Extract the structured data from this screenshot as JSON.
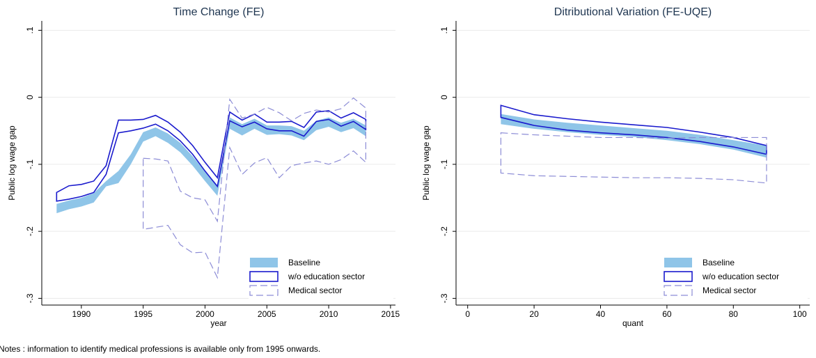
{
  "chart_data": [
    {
      "type": "band",
      "title": "Time Change (FE)",
      "xlabel": "year",
      "ylabel": "Public log wage gap",
      "x": [
        1988,
        1989,
        1990,
        1991,
        1992,
        1993,
        1994,
        1995,
        1996,
        1997,
        1998,
        1999,
        2000,
        2001,
        2002,
        2003,
        2004,
        2005,
        2006,
        2007,
        2008,
        2009,
        2010,
        2011,
        2012,
        2013
      ],
      "xlim": [
        1986.8,
        2015.4
      ],
      "xticks": [
        1990,
        1995,
        2000,
        2005,
        2010,
        2015
      ],
      "ylim": [
        -0.31,
        0.114
      ],
      "yticks": [
        {
          "value": 0.1,
          "label": ".1"
        },
        0,
        {
          "value": -0.1,
          "label": "-.1"
        },
        {
          "value": -0.2,
          "label": "-.2"
        },
        {
          "value": -0.3,
          "label": "-.3"
        }
      ],
      "grid": true,
      "legend": "lower right",
      "series": [
        {
          "name": "Baseline",
          "color": "#8fc5e8",
          "style": "filled",
          "upper": [
            -0.159,
            -0.154,
            -0.15,
            -0.143,
            -0.125,
            -0.11,
            -0.085,
            -0.052,
            -0.045,
            -0.054,
            -0.068,
            -0.088,
            -0.11,
            -0.131,
            -0.03,
            -0.04,
            -0.032,
            -0.042,
            -0.042,
            -0.043,
            -0.05,
            -0.035,
            -0.03,
            -0.038,
            -0.032,
            -0.042
          ],
          "lower": [
            -0.173,
            -0.167,
            -0.163,
            -0.157,
            -0.133,
            -0.128,
            -0.1,
            -0.066,
            -0.058,
            -0.068,
            -0.082,
            -0.102,
            -0.125,
            -0.147,
            -0.047,
            -0.057,
            -0.047,
            -0.056,
            -0.055,
            -0.057,
            -0.064,
            -0.049,
            -0.044,
            -0.052,
            -0.046,
            -0.058
          ]
        },
        {
          "name": "w/o education sector",
          "color": "#1a1acd",
          "style": "outline",
          "upper": [
            -0.142,
            -0.132,
            -0.13,
            -0.125,
            -0.102,
            -0.034,
            -0.034,
            -0.033,
            -0.027,
            -0.037,
            -0.052,
            -0.072,
            -0.097,
            -0.12,
            -0.022,
            -0.034,
            -0.025,
            -0.037,
            -0.037,
            -0.036,
            -0.045,
            -0.022,
            -0.02,
            -0.031,
            -0.023,
            -0.033
          ],
          "lower": [
            -0.155,
            -0.152,
            -0.148,
            -0.142,
            -0.115,
            -0.053,
            -0.05,
            -0.046,
            -0.04,
            -0.05,
            -0.065,
            -0.085,
            -0.11,
            -0.133,
            -0.035,
            -0.044,
            -0.037,
            -0.047,
            -0.05,
            -0.05,
            -0.058,
            -0.036,
            -0.033,
            -0.043,
            -0.036,
            -0.048
          ]
        },
        {
          "name": "Medical sector",
          "color": "#8c8cd6",
          "style": "dashed",
          "upper": [
            null,
            null,
            null,
            null,
            null,
            null,
            null,
            -0.091,
            -0.092,
            -0.095,
            -0.14,
            -0.15,
            -0.153,
            -0.185,
            -0.003,
            -0.031,
            -0.025,
            -0.015,
            -0.023,
            -0.035,
            -0.024,
            -0.019,
            -0.022,
            -0.017,
            -0.001,
            -0.016
          ],
          "lower": [
            null,
            null,
            null,
            null,
            null,
            null,
            null,
            -0.197,
            -0.194,
            -0.191,
            -0.22,
            -0.232,
            -0.231,
            -0.269,
            -0.075,
            -0.115,
            -0.098,
            -0.09,
            -0.12,
            -0.102,
            -0.098,
            -0.095,
            -0.1,
            -0.093,
            -0.08,
            -0.097
          ]
        }
      ]
    },
    {
      "type": "band",
      "title": "Ditributional Variation (FE-UQE)",
      "xlabel": "quant",
      "ylabel": "Public log wage gap",
      "x": [
        10,
        20,
        30,
        40,
        50,
        60,
        70,
        80,
        90
      ],
      "xlim": [
        -3.5,
        103
      ],
      "xticks": [
        0,
        20,
        40,
        60,
        80,
        100
      ],
      "ylim": [
        -0.31,
        0.114
      ],
      "yticks": [
        {
          "value": 0.1,
          "label": ".1"
        },
        0,
        {
          "value": -0.1,
          "label": "-.1"
        },
        {
          "value": -0.2,
          "label": "-.2"
        },
        {
          "value": -0.3,
          "label": "-.3"
        }
      ],
      "grid": true,
      "legend": "lower right",
      "series": [
        {
          "name": "Baseline",
          "color": "#8fc5e8",
          "style": "filled",
          "upper": [
            -0.025,
            -0.033,
            -0.038,
            -0.042,
            -0.046,
            -0.05,
            -0.056,
            -0.064,
            -0.072
          ],
          "lower": [
            -0.04,
            -0.047,
            -0.052,
            -0.056,
            -0.059,
            -0.064,
            -0.07,
            -0.078,
            -0.09
          ]
        },
        {
          "name": "w/o education sector",
          "color": "#1a1acd",
          "style": "outline",
          "upper": [
            -0.012,
            -0.026,
            -0.032,
            -0.037,
            -0.041,
            -0.045,
            -0.052,
            -0.06,
            -0.072
          ],
          "lower": [
            -0.03,
            -0.042,
            -0.049,
            -0.053,
            -0.056,
            -0.06,
            -0.066,
            -0.074,
            -0.085
          ]
        },
        {
          "name": "Medical sector",
          "color": "#8c8cd6",
          "style": "dashed",
          "upper": [
            -0.053,
            -0.056,
            -0.058,
            -0.06,
            -0.06,
            -0.061,
            -0.06,
            -0.06,
            -0.06
          ],
          "lower": [
            -0.113,
            -0.117,
            -0.118,
            -0.119,
            -0.12,
            -0.12,
            -0.121,
            -0.123,
            -0.128
          ]
        }
      ]
    }
  ],
  "note": "Notes : information to identify medical professions is available only from 1995 onwards."
}
